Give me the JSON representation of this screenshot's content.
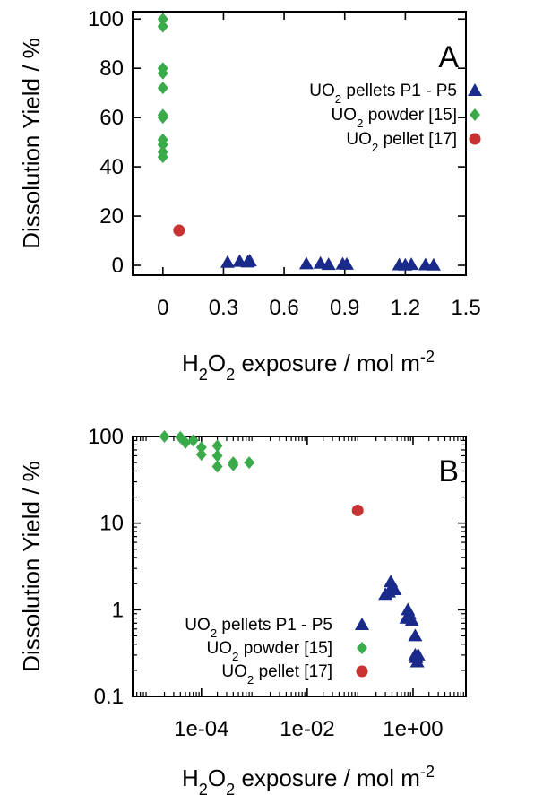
{
  "chart_data": [
    {
      "type": "scatter",
      "panel_label": "A",
      "xlabel": "H₂O₂ exposure / mol m⁻²",
      "ylabel": "Dissolution Yield / %",
      "xscale": "linear",
      "yscale": "linear",
      "xlim": [
        -0.15,
        1.5
      ],
      "ylim": [
        -4,
        103
      ],
      "xticks": [
        0,
        0.3,
        0.6,
        0.9,
        1.2,
        1.5
      ],
      "xtick_labels": [
        "0",
        "0.3",
        "0.6",
        "0.9",
        "1.2",
        "1.5"
      ],
      "yticks": [
        0,
        20,
        40,
        60,
        80,
        100
      ],
      "ytick_labels": [
        "0",
        "20",
        "40",
        "60",
        "80",
        "100"
      ],
      "legend_position": "upper-right",
      "series": [
        {
          "name": "UO₂ pellets P1 - P5",
          "marker": "triangle",
          "color": "#1a2a8a",
          "points": [
            [
              0.32,
              1.2
            ],
            [
              0.38,
              1.6
            ],
            [
              0.42,
              1.3
            ],
            [
              0.43,
              1.8
            ],
            [
              0.71,
              0.6
            ],
            [
              0.78,
              0.8
            ],
            [
              0.82,
              0.3
            ],
            [
              0.89,
              0.5
            ],
            [
              0.91,
              0.4
            ],
            [
              1.17,
              0.2
            ],
            [
              1.2,
              0.1
            ],
            [
              1.23,
              0.3
            ],
            [
              1.3,
              0.2
            ],
            [
              1.34,
              0.1
            ]
          ]
        },
        {
          "name": "UO₂ powder [15]",
          "marker": "diamond",
          "color": "#3aaa4a",
          "points": [
            [
              0,
              100
            ],
            [
              0,
              97
            ],
            [
              0,
              80
            ],
            [
              0,
              78
            ],
            [
              0,
              72
            ],
            [
              0,
              61
            ],
            [
              0,
              60
            ],
            [
              0,
              51
            ],
            [
              0,
              49
            ],
            [
              0,
              46
            ],
            [
              0,
              44
            ]
          ]
        },
        {
          "name": "UO₂ pellet [17]",
          "marker": "circle",
          "color": "#c83232",
          "points": [
            [
              0.08,
              14.2
            ]
          ]
        }
      ]
    },
    {
      "type": "scatter",
      "panel_label": "B",
      "xlabel": "H₂O₂ exposure / mol m⁻²",
      "ylabel": "Dissolution Yield / %",
      "xscale": "log",
      "yscale": "log",
      "xlim": [
        5e-06,
        10
      ],
      "ylim": [
        0.1,
        100
      ],
      "xticks": [
        0.0001,
        0.01,
        1
      ],
      "xtick_labels": [
        "1e-04",
        "1e-02",
        "1e+00"
      ],
      "yticks": [
        0.1,
        1,
        10,
        100
      ],
      "ytick_labels": [
        "0.1",
        "1",
        "10",
        "100"
      ],
      "legend_position": "lower-left",
      "series": [
        {
          "name": "UO₂ pellets P1 - P5",
          "marker": "triangle",
          "color": "#1a2a8a",
          "points": [
            [
              0.3,
              1.5
            ],
            [
              0.35,
              1.6
            ],
            [
              0.38,
              2.1
            ],
            [
              0.42,
              1.8
            ],
            [
              0.45,
              1.7
            ],
            [
              0.75,
              0.8
            ],
            [
              0.8,
              1.0
            ],
            [
              0.85,
              0.9
            ],
            [
              0.9,
              0.8
            ],
            [
              0.95,
              0.75
            ],
            [
              1.1,
              0.5
            ],
            [
              1.1,
              0.3
            ],
            [
              1.15,
              0.28
            ],
            [
              1.2,
              0.25
            ],
            [
              1.25,
              0.3
            ]
          ]
        },
        {
          "name": "UO₂ powder [15]",
          "marker": "diamond",
          "color": "#3aaa4a",
          "points": [
            [
              2e-05,
              100
            ],
            [
              4e-05,
              98
            ],
            [
              5e-05,
              85
            ],
            [
              7e-05,
              90
            ],
            [
              0.0001,
              75
            ],
            [
              0.0001,
              62
            ],
            [
              0.0002,
              78
            ],
            [
              0.0002,
              60
            ],
            [
              0.0002,
              45
            ],
            [
              0.0004,
              50
            ],
            [
              0.0004,
              47
            ],
            [
              0.0008,
              50
            ]
          ]
        },
        {
          "name": "UO₂ pellet [17]",
          "marker": "circle",
          "color": "#c83232",
          "points": [
            [
              0.09,
              14
            ]
          ]
        }
      ]
    }
  ]
}
